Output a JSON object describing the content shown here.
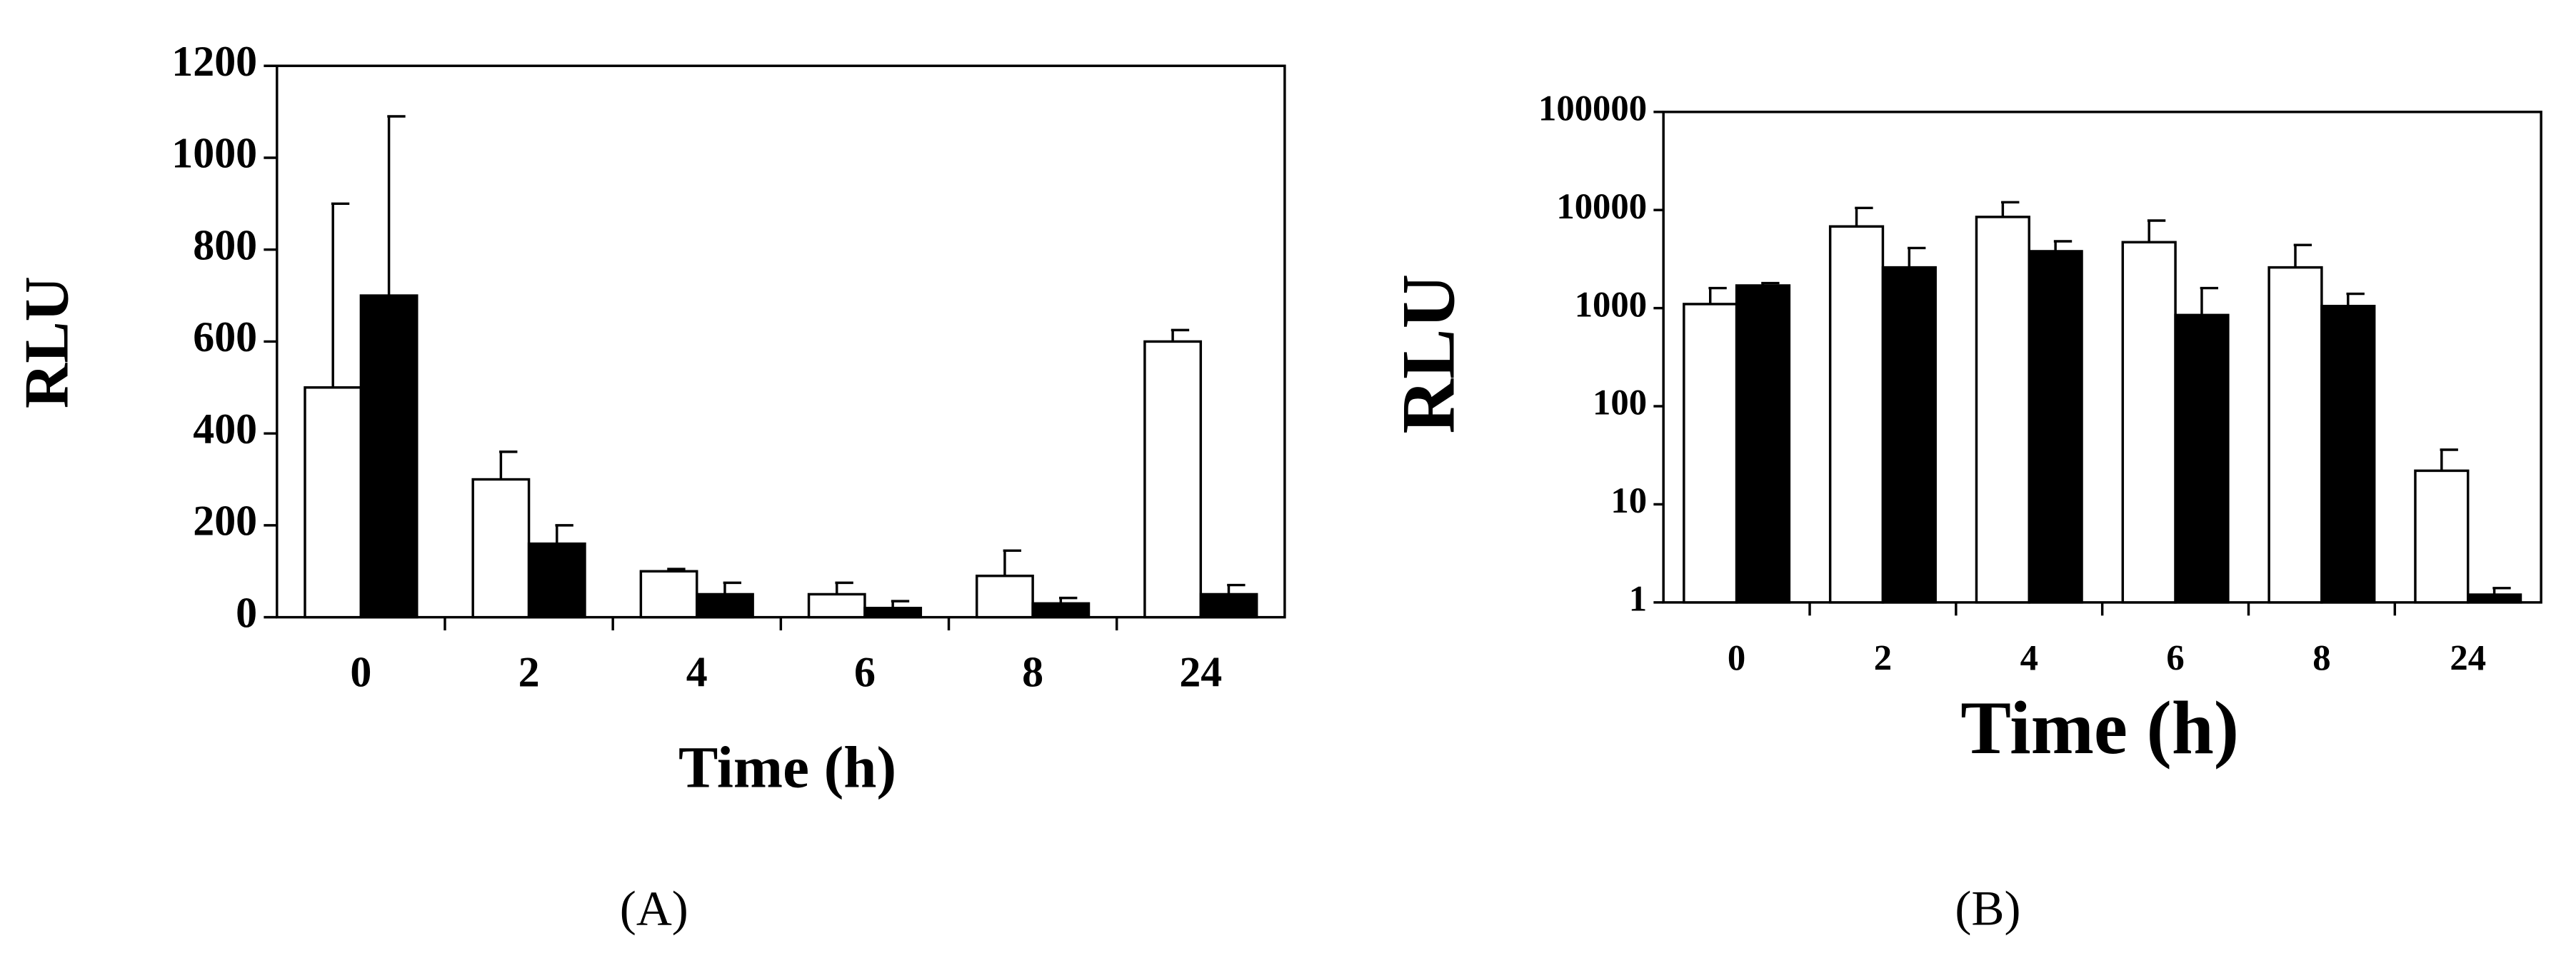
{
  "chart_data": [
    {
      "type": "bar",
      "panel_label": "(A)",
      "x_label": "Time (h)",
      "y_label": "RLU",
      "categories": [
        "0",
        "2",
        "4",
        "6",
        "8",
        "24"
      ],
      "series": [
        {
          "color": "#ffffff",
          "values": [
            500,
            300,
            100,
            50,
            90,
            600
          ],
          "errors": [
            400,
            60,
            5,
            25,
            55,
            25
          ]
        },
        {
          "color": "#000000",
          "values": [
            700,
            160,
            50,
            20,
            30,
            50
          ],
          "errors": [
            390,
            40,
            25,
            15,
            12,
            20
          ]
        }
      ],
      "ylim": [
        0,
        1200
      ],
      "yticks": [
        0,
        200,
        400,
        600,
        800,
        1000,
        1200
      ],
      "log_scale": false
    },
    {
      "type": "bar",
      "panel_label": "(B)",
      "x_label": "Time (h)",
      "y_label": "RLU",
      "categories": [
        "0",
        "2",
        "4",
        "6",
        "8",
        "24"
      ],
      "series": [
        {
          "color": "#ffffff",
          "values": [
            1100,
            6800,
            8500,
            4700,
            2600,
            22
          ],
          "errors": [
            500,
            3700,
            3500,
            3100,
            1800,
            14
          ]
        },
        {
          "color": "#000000",
          "values": [
            1700,
            2600,
            3800,
            850,
            1050,
            1.2
          ],
          "errors": [
            100,
            1500,
            1000,
            750,
            350,
            0.2
          ]
        }
      ],
      "ylim": [
        1,
        100000
      ],
      "yticks": [
        1,
        10,
        100,
        1000,
        10000,
        100000
      ],
      "log_scale": true
    }
  ]
}
